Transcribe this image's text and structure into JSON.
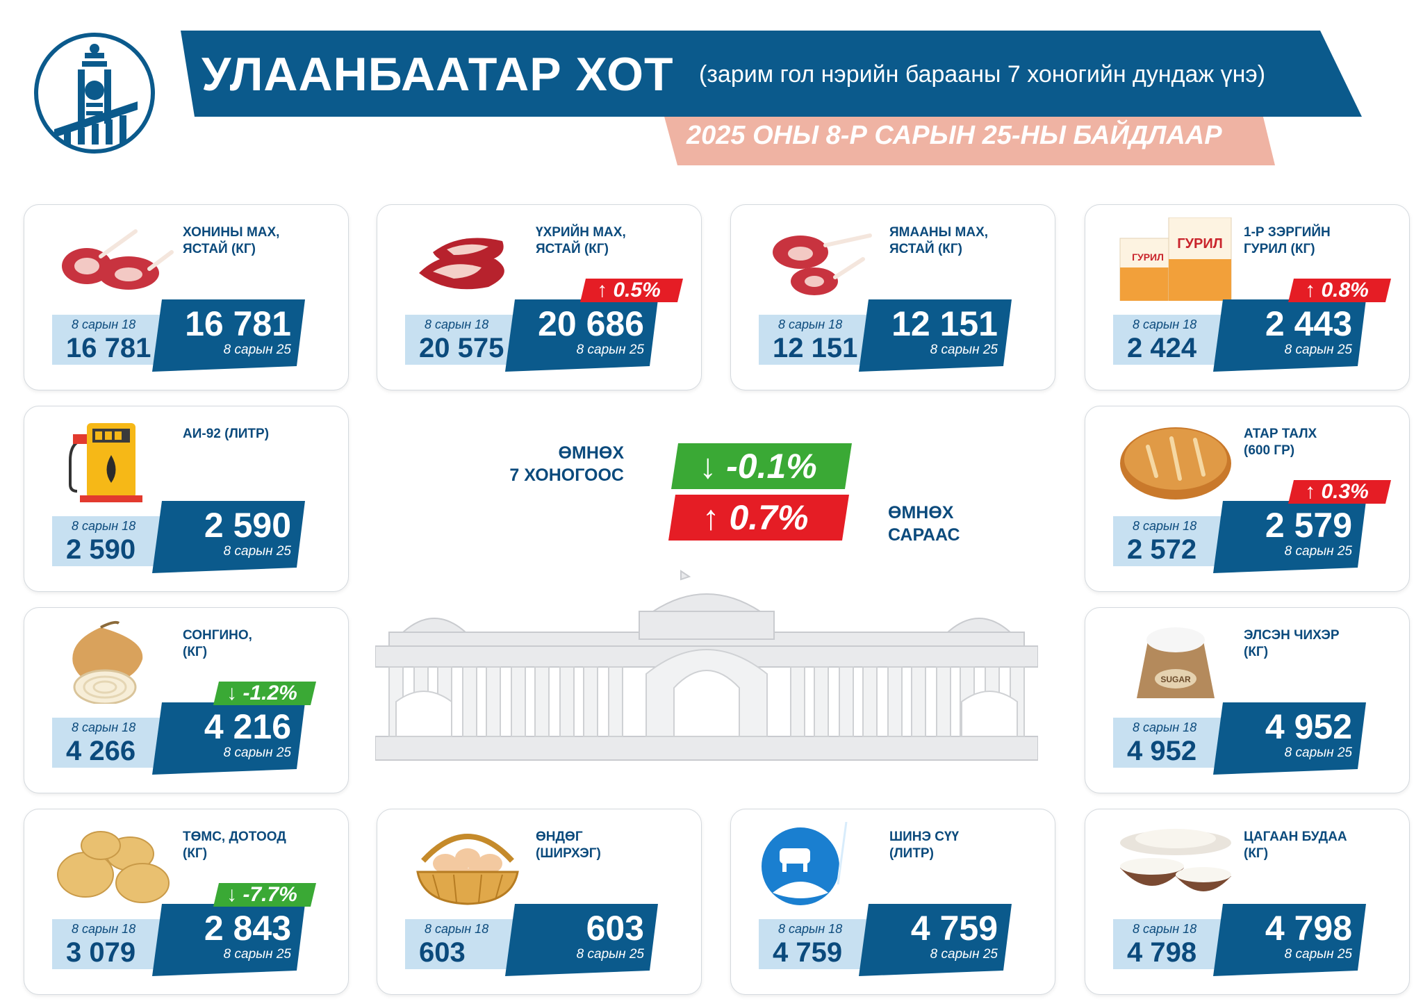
{
  "header": {
    "title": "УЛААНБААТАР ХОТ",
    "subtitle": "(зарим гол нэрийн барааны 7 хоногийн дундаж үнэ)",
    "date": "2025 ОНЫ 8-Р САРЫН 25-НЫ БАЙДЛААР"
  },
  "colors": {
    "primary_blue": "#0b5a8c",
    "light_blue": "#c7e0f1",
    "up_red": "#e51d25",
    "down_green": "#3aa935",
    "date_band": "#efb3a3"
  },
  "center": {
    "week_label_1": "ӨМНӨХ",
    "week_label_2": "7 ХОНОГООС",
    "week_change": "↓ -0.1%",
    "month_label_1": "ӨМНӨХ",
    "month_label_2": "САРААС",
    "month_change": "↑ 0.7%"
  },
  "items": [
    {
      "name_1": "ХОНИНЫ МАХ,",
      "name_2": "ЯСТАЙ (КГ)",
      "prev_label": "8 сарын 18",
      "prev": "16 781",
      "cur": "16 781",
      "cur_label": "8 сарын 25",
      "change": "",
      "icon": "mutton-icon"
    },
    {
      "name_1": "ҮХРИЙН МАХ,",
      "name_2": "ЯСТАЙ (КГ)",
      "prev_label": "8 сарын 18",
      "prev": "20 575",
      "cur": "20 686",
      "cur_label": "8 сарын 25",
      "change": "↑ 0.5%",
      "icon": "beef-icon"
    },
    {
      "name_1": "ЯМААНЫ МАХ,",
      "name_2": "ЯСТАЙ (КГ)",
      "prev_label": "8 сарын 18",
      "prev": "12 151",
      "cur": "12 151",
      "cur_label": "8 сарын 25",
      "change": "",
      "icon": "goat-meat-icon"
    },
    {
      "name_1": "1-Р ЗЭРГИЙН",
      "name_2": "ГУРИЛ (КГ)",
      "prev_label": "8 сарын 18",
      "prev": "2 424",
      "cur": "2 443",
      "cur_label": "8 сарын 25",
      "change": "↑ 0.8%",
      "icon": "flour-icon",
      "flour_text": "ГУРИЛ"
    },
    {
      "name_1": "АИ-92 (ЛИТР)",
      "name_2": "",
      "prev_label": "8 сарын 18",
      "prev": "2 590",
      "cur": "2 590",
      "cur_label": "8 сарын 25",
      "change": "",
      "icon": "fuel-pump-icon"
    },
    {
      "name_1": "АТАР ТАЛХ",
      "name_2": " (600 ГР)",
      "prev_label": "8 сарын 18",
      "prev": "2 572",
      "cur": "2 579",
      "cur_label": "8 сарын 25",
      "change": "↑ 0.3%",
      "icon": "bread-icon"
    },
    {
      "name_1": "СОНГИНО,",
      "name_2": "(КГ)",
      "prev_label": "8 сарын 18",
      "prev": "4 266",
      "cur": "4 216",
      "cur_label": "8 сарын 25",
      "change": "↓ -1.2%",
      "icon": "onion-icon"
    },
    {
      "name_1": "ЭЛСЭН ЧИХЭР",
      "name_2": "(КГ)",
      "prev_label": "8 сарын 18",
      "prev": "4 952",
      "cur": "4 952",
      "cur_label": "8 сарын 25",
      "change": "",
      "icon": "sugar-sack-icon",
      "sack_text": "SUGAR"
    },
    {
      "name_1": "ТӨМС, ДОТООД",
      "name_2": "(КГ)",
      "prev_label": "8 сарын 18",
      "prev": "3 079",
      "cur": "2 843",
      "cur_label": "8 сарын 25",
      "change": "↓ -7.7%",
      "icon": "potato-icon"
    },
    {
      "name_1": "ӨНДӨГ",
      "name_2": "(ШИРХЭГ)",
      "prev_label": "8 сарын 18",
      "prev": "603",
      "cur": "603",
      "cur_label": "8 сарын 25",
      "change": "",
      "icon": "egg-basket-icon"
    },
    {
      "name_1": "ШИНЭ СҮҮ",
      "name_2": "(ЛИТР)",
      "prev_label": "8 сарын 18",
      "prev": "4 759",
      "cur": "4 759",
      "cur_label": "8 сарын 25",
      "change": "",
      "icon": "milk-icon"
    },
    {
      "name_1": "ЦАГААН БУДАА",
      "name_2": "(КГ)",
      "prev_label": "8 сарын 18",
      "prev": "4 798",
      "cur": "4 798",
      "cur_label": "8 сарын 25",
      "change": "",
      "icon": "rice-bowl-icon"
    }
  ]
}
